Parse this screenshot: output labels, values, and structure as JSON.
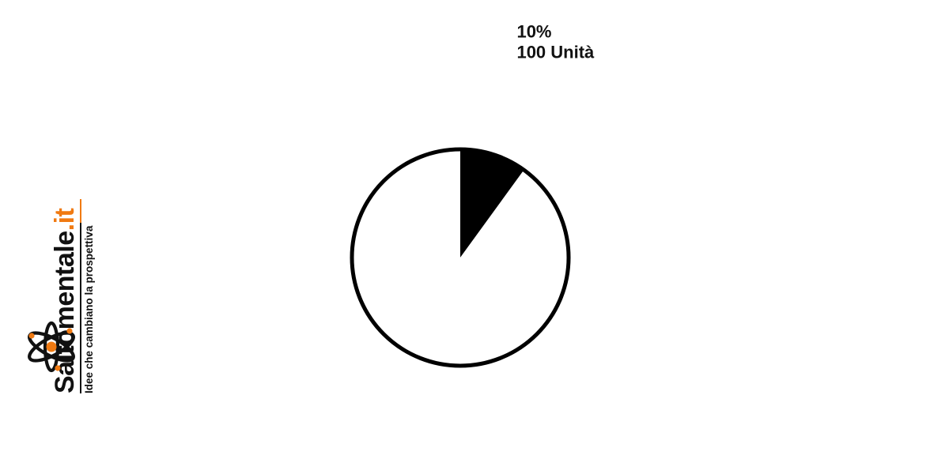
{
  "brand": {
    "name": "Saltomentale",
    "tld": ".it",
    "tagline": "Idee che cambiano la prospettiva",
    "logo_icon": "atom-icon",
    "colors": {
      "text": "#111111",
      "accent": "#f07a12"
    }
  },
  "chart_data": {
    "type": "pie",
    "title": "",
    "start_angle_deg": 0,
    "direction": "clockwise",
    "slices": [
      {
        "value": 100,
        "percent": 10,
        "percent_label": "10%",
        "value_label": "100 Unità",
        "fill": "#000000"
      },
      {
        "value": 900,
        "percent": 90,
        "fill": "#ffffff"
      }
    ],
    "outline_color": "#000000",
    "legend": "none"
  }
}
